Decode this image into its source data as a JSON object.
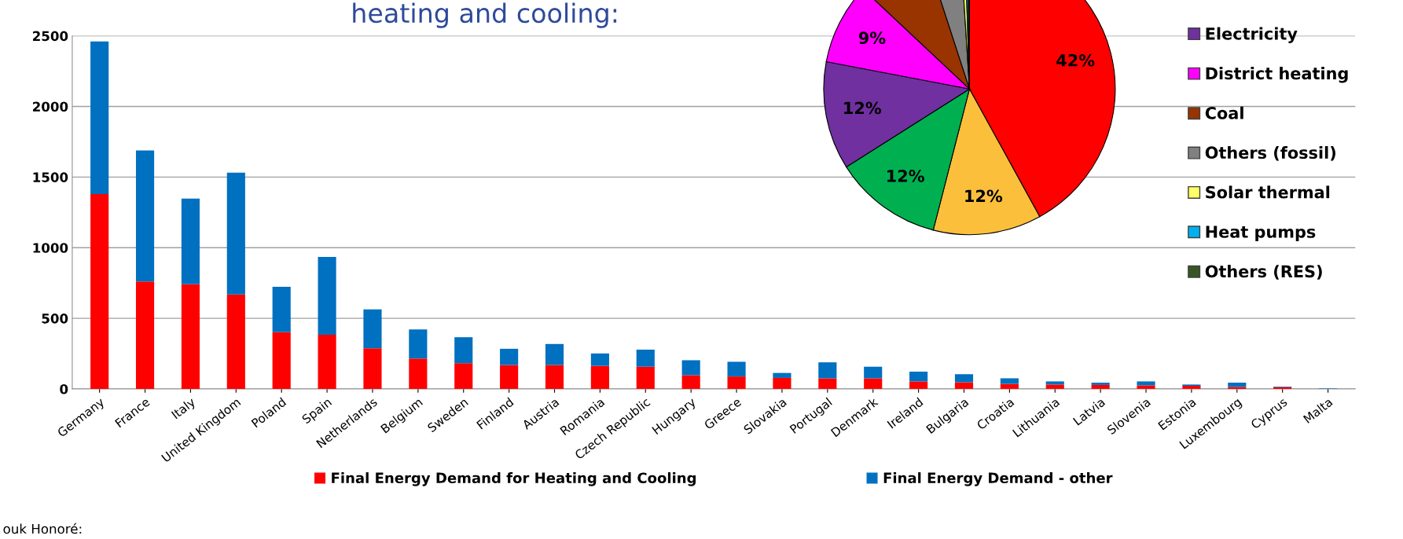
{
  "chart_data": [
    {
      "type": "bar",
      "title": "heating and cooling:",
      "stacked": true,
      "legend": "bottom",
      "grid": "y",
      "categories": [
        "Germany",
        "France",
        "Italy",
        "United Kingdom",
        "Poland",
        "Spain",
        "Netherlands",
        "Belgium",
        "Sweden",
        "Finland",
        "Austria",
        "Romania",
        "Czech Republic",
        "Hungary",
        "Greece",
        "Slovakia",
        "Portugal",
        "Denmark",
        "Ireland",
        "Bulgaria",
        "Croatia",
        "Lithuania",
        "Latvia",
        "Slovenia",
        "Estonia",
        "Luxembourg",
        "Cyprus",
        "Malta"
      ],
      "series": [
        {
          "name": "Final Energy Demand for Heating and Cooling",
          "color": "#ff0000",
          "values": [
            1380,
            760,
            741,
            669,
            402,
            384,
            287,
            215,
            182,
            169,
            169,
            163,
            157,
            97,
            88,
            78,
            75,
            75,
            53,
            47,
            35,
            31,
            28,
            25,
            22,
            13,
            12,
            null
          ]
        },
        {
          "name": "Final Energy Demand - other",
          "color": "#0070c0",
          "values": [
            1080,
            928,
            606,
            862,
            321,
            551,
            276,
            206,
            184,
            115,
            149,
            88,
            121,
            106,
            104,
            35,
            113,
            82,
            69,
            57,
            40,
            22,
            16,
            28,
            9,
            31,
            4,
            3
          ]
        }
      ],
      "ylim": [
        0,
        2500
      ],
      "yticks": [
        0,
        500,
        1000,
        1500,
        2000,
        2500
      ],
      "annotations": [
        "ouk Honoré:"
      ]
    },
    {
      "type": "pie",
      "legend": "right",
      "categories": [
        null,
        null,
        null,
        "Electricity",
        "District heating",
        "Coal",
        "Others (fossil)",
        "Solar thermal",
        "Heat pumps",
        "Others (RES)"
      ],
      "values": [
        42,
        12,
        12,
        12,
        9,
        8,
        4,
        0.5,
        0.3,
        0.2
      ],
      "colors": [
        "#ff0000",
        "#fbbf3c",
        "#00b050",
        "#7030a0",
        "#ff00ff",
        "#993300",
        "#808080",
        "#ffff66",
        "#00b0f0",
        "#375623"
      ],
      "value_labels": [
        "42%",
        "12%",
        "12%",
        "12%",
        "9%",
        null,
        null,
        null,
        null,
        null
      ]
    }
  ]
}
